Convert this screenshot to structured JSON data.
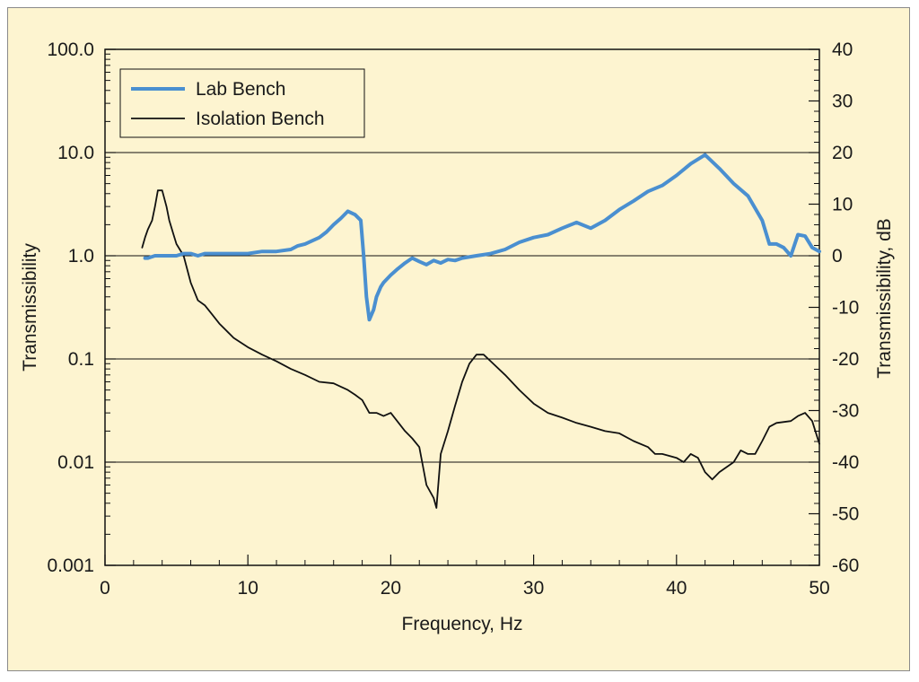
{
  "chart_data": {
    "type": "line",
    "xlabel": "Frequency, Hz",
    "ylabel": "Transmissibility",
    "y2label": "Transmissibility, dB",
    "xlim": [
      0,
      50
    ],
    "ylim": [
      0.001,
      100
    ],
    "y2lim": [
      -60,
      40
    ],
    "yscale": "log",
    "x_ticks": [
      0,
      10,
      20,
      30,
      40,
      50
    ],
    "y_ticks": [
      0.001,
      0.01,
      0.1,
      1.0,
      10.0,
      100.0
    ],
    "y_tick_labels": [
      "0.001",
      "0.01",
      "0.1",
      "1.0",
      "10.0",
      "100.0"
    ],
    "y2_ticks": [
      -60,
      -50,
      -40,
      -30,
      -20,
      -10,
      0,
      10,
      20,
      30,
      40
    ],
    "y2_tick_labels": [
      "-60",
      "-50",
      "-40",
      "-30",
      "-20",
      "-10",
      "0",
      "10",
      "20",
      "30",
      "40"
    ],
    "grid": "horizontal at major y ticks",
    "legend_position": "top-left",
    "colors": {
      "background": "#fdf4d0",
      "lab_bench": "#4a8fd0",
      "isolation_bench": "#111111"
    },
    "series": [
      {
        "name": "Lab Bench",
        "x": [
          2.8,
          3.0,
          3.5,
          4.0,
          4.5,
          5.0,
          5.5,
          6.0,
          6.5,
          7.0,
          8.0,
          9.0,
          10.0,
          11.0,
          12.0,
          13.0,
          13.5,
          14.0,
          15.0,
          15.5,
          16.0,
          16.5,
          17.0,
          17.5,
          17.9,
          18.1,
          18.3,
          18.5,
          18.8,
          19.0,
          19.3,
          19.5,
          20.0,
          20.5,
          21.0,
          21.5,
          22.0,
          22.5,
          23.0,
          23.5,
          24.0,
          24.5,
          25.0,
          26.0,
          27.0,
          28.0,
          29.0,
          30.0,
          31.0,
          32.0,
          33.0,
          34.0,
          35.0,
          36.0,
          37.0,
          38.0,
          39.0,
          40.0,
          41.0,
          42.0,
          43.0,
          44.0,
          45.0,
          46.0,
          46.5,
          47.0,
          47.5,
          48.0,
          48.5,
          49.0,
          49.5,
          50.0
        ],
        "values": [
          0.95,
          0.95,
          1.0,
          1.0,
          1.0,
          1.0,
          1.05,
          1.05,
          1.0,
          1.05,
          1.05,
          1.05,
          1.05,
          1.1,
          1.1,
          1.15,
          1.25,
          1.3,
          1.5,
          1.7,
          2.0,
          2.3,
          2.7,
          2.5,
          2.2,
          1.0,
          0.4,
          0.24,
          0.3,
          0.4,
          0.5,
          0.55,
          0.65,
          0.75,
          0.85,
          0.95,
          0.88,
          0.82,
          0.9,
          0.85,
          0.92,
          0.9,
          0.95,
          1.0,
          1.05,
          1.15,
          1.35,
          1.5,
          1.6,
          1.85,
          2.1,
          1.85,
          2.2,
          2.8,
          3.4,
          4.2,
          4.8,
          6.0,
          7.8,
          9.5,
          7.0,
          5.0,
          3.8,
          2.2,
          1.3,
          1.3,
          1.2,
          1.0,
          1.6,
          1.55,
          1.2,
          1.1
        ]
      },
      {
        "name": "Isolation Bench",
        "x": [
          2.6,
          2.8,
          3.0,
          3.3,
          3.5,
          3.7,
          4.0,
          4.3,
          4.5,
          4.8,
          5.0,
          5.5,
          6.0,
          6.5,
          7.0,
          7.5,
          8.0,
          9.0,
          10.0,
          11.0,
          12.0,
          13.0,
          14.0,
          15.0,
          16.0,
          17.0,
          17.5,
          18.0,
          18.5,
          19.0,
          19.5,
          20.0,
          21.0,
          21.5,
          22.0,
          22.2,
          22.5,
          23.0,
          23.2,
          23.5,
          24.0,
          24.5,
          25.0,
          25.5,
          26.0,
          26.5,
          27.0,
          28.0,
          29.0,
          30.0,
          31.0,
          32.0,
          33.0,
          34.0,
          35.0,
          36.0,
          37.0,
          38.0,
          38.5,
          39.0,
          40.0,
          40.5,
          41.0,
          41.5,
          42.0,
          42.5,
          43.0,
          44.0,
          44.5,
          45.0,
          45.5,
          46.0,
          46.5,
          47.0,
          48.0,
          48.5,
          49.0,
          49.5,
          50.0
        ],
        "values": [
          1.2,
          1.5,
          1.8,
          2.2,
          3.0,
          4.3,
          4.3,
          3.0,
          2.2,
          1.6,
          1.3,
          1.0,
          0.55,
          0.37,
          0.33,
          0.27,
          0.22,
          0.16,
          0.13,
          0.11,
          0.095,
          0.08,
          0.07,
          0.06,
          0.058,
          0.05,
          0.045,
          0.04,
          0.03,
          0.03,
          0.028,
          0.03,
          0.02,
          0.017,
          0.014,
          0.01,
          0.006,
          0.0045,
          0.0036,
          0.012,
          0.02,
          0.035,
          0.06,
          0.09,
          0.11,
          0.11,
          0.095,
          0.07,
          0.05,
          0.037,
          0.03,
          0.027,
          0.024,
          0.022,
          0.02,
          0.019,
          0.016,
          0.014,
          0.012,
          0.012,
          0.011,
          0.01,
          0.012,
          0.011,
          0.008,
          0.0068,
          0.008,
          0.01,
          0.013,
          0.012,
          0.012,
          0.016,
          0.022,
          0.024,
          0.025,
          0.028,
          0.03,
          0.025,
          0.015
        ]
      }
    ]
  }
}
